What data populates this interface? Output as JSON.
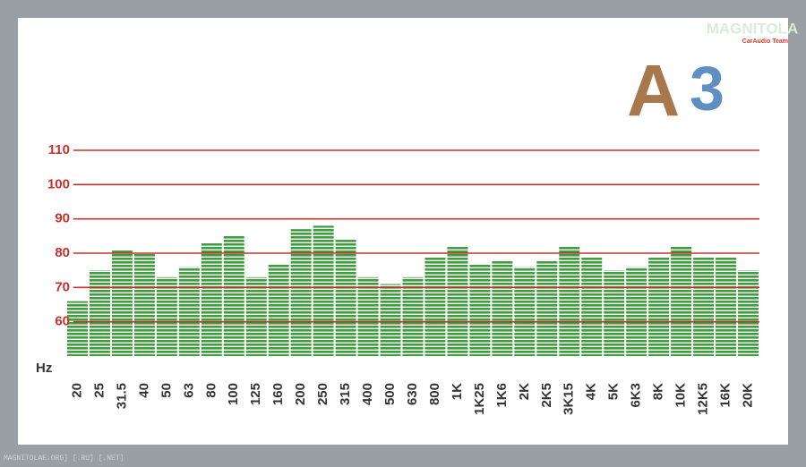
{
  "chart_data": {
    "type": "bar",
    "x_label": "Hz",
    "categories": [
      "20",
      "25",
      "31.5",
      "40",
      "50",
      "63",
      "80",
      "100",
      "125",
      "160",
      "200",
      "250",
      "315",
      "400",
      "500",
      "630",
      "800",
      "1K",
      "1K25",
      "1K6",
      "2K",
      "2K5",
      "3K15",
      "4K",
      "5K",
      "6K3",
      "8K",
      "10K",
      "12K5",
      "16K",
      "20K"
    ],
    "values": [
      66,
      75,
      81,
      80,
      73,
      76,
      83,
      85,
      73,
      77,
      87,
      88,
      84,
      73,
      71,
      73,
      79,
      82,
      77,
      78,
      76,
      78,
      82,
      79,
      75,
      76,
      79,
      82,
      79,
      79,
      75
    ],
    "color": "#3f9c3f",
    "grid_color": "#c8302a",
    "ylim": [
      50,
      110
    ],
    "yticks": [
      60,
      70,
      80,
      90,
      100,
      110
    ],
    "grid": true
  },
  "logo": {
    "letter": "A",
    "digit": "3"
  },
  "watermark": {
    "title": "MAGNITOLA",
    "subtitle": "CarAudio Team"
  },
  "footer": "MAGNITOLAE.ORG] [.RU] [.NET]"
}
